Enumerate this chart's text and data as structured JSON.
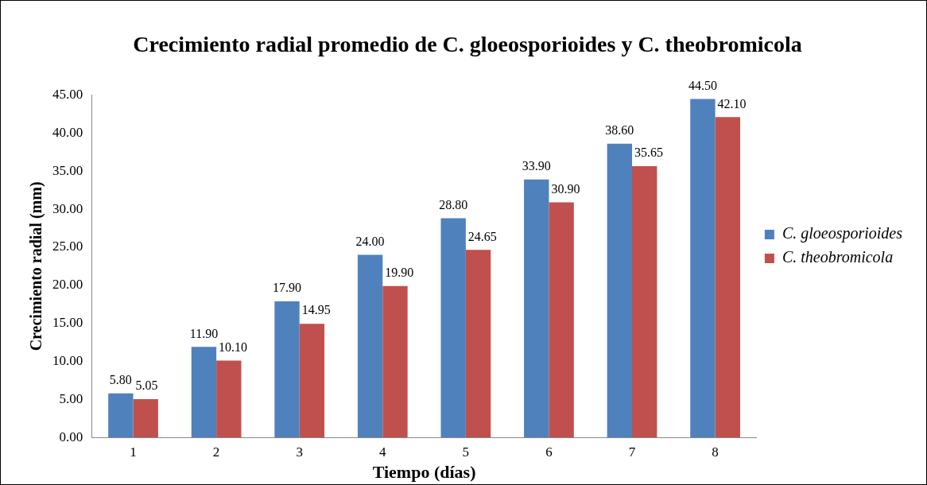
{
  "chart_data": {
    "type": "bar",
    "title": "Crecimiento radial promedio de C. gloeosporioides y C. theobromicola",
    "xlabel": "Tiempo (días)",
    "ylabel": "Crecimiento radial (mm)",
    "categories": [
      "1",
      "2",
      "3",
      "4",
      "5",
      "6",
      "7",
      "8"
    ],
    "series": [
      {
        "name": "C. gloeosporioides",
        "color": "#4f81bd",
        "values": [
          5.8,
          11.9,
          17.9,
          24.0,
          28.8,
          33.9,
          38.6,
          44.5
        ],
        "value_labels": [
          "5.80",
          "11.90",
          "17.90",
          "24.00",
          "28.80",
          "33.90",
          "38.60",
          "44.50"
        ]
      },
      {
        "name": "C. theobromicola",
        "color": "#c0504d",
        "values": [
          5.05,
          10.1,
          14.95,
          19.9,
          24.65,
          30.9,
          35.65,
          42.1
        ],
        "value_labels": [
          "5.05",
          "10.10",
          "14.95",
          "19.90",
          "24.65",
          "30.90",
          "35.65",
          "42.10"
        ]
      }
    ],
    "ylim": [
      0,
      45
    ],
    "yticks": [
      {
        "value": 0,
        "label": "0.00"
      },
      {
        "value": 5,
        "label": "5.00"
      },
      {
        "value": 10,
        "label": "10.00"
      },
      {
        "value": 15,
        "label": "15.00"
      },
      {
        "value": 20,
        "label": "20.00"
      },
      {
        "value": 25,
        "label": "25.00"
      },
      {
        "value": 30,
        "label": "30.00"
      },
      {
        "value": 35,
        "label": "35.00"
      },
      {
        "value": 40,
        "label": "40.00"
      },
      {
        "value": 45,
        "label": "45.00"
      }
    ],
    "grid": false,
    "legend": "right"
  }
}
